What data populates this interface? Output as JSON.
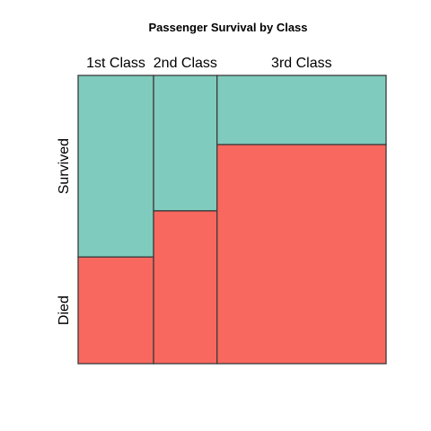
{
  "chart_data": {
    "type": "mosaic",
    "title": "Passenger Survival by Class",
    "categories": [
      "1st Class",
      "2nd Class",
      "3rd Class"
    ],
    "column_shares": [
      0.245,
      0.206,
      0.549
    ],
    "series": [
      {
        "name": "Died",
        "color": "#f8685f",
        "fractions": [
          0.37,
          0.53,
          0.76
        ]
      },
      {
        "name": "Survived",
        "color": "#7fcbbd",
        "fractions": [
          0.63,
          0.47,
          0.24
        ]
      }
    ],
    "grid": false,
    "legend": "none"
  }
}
